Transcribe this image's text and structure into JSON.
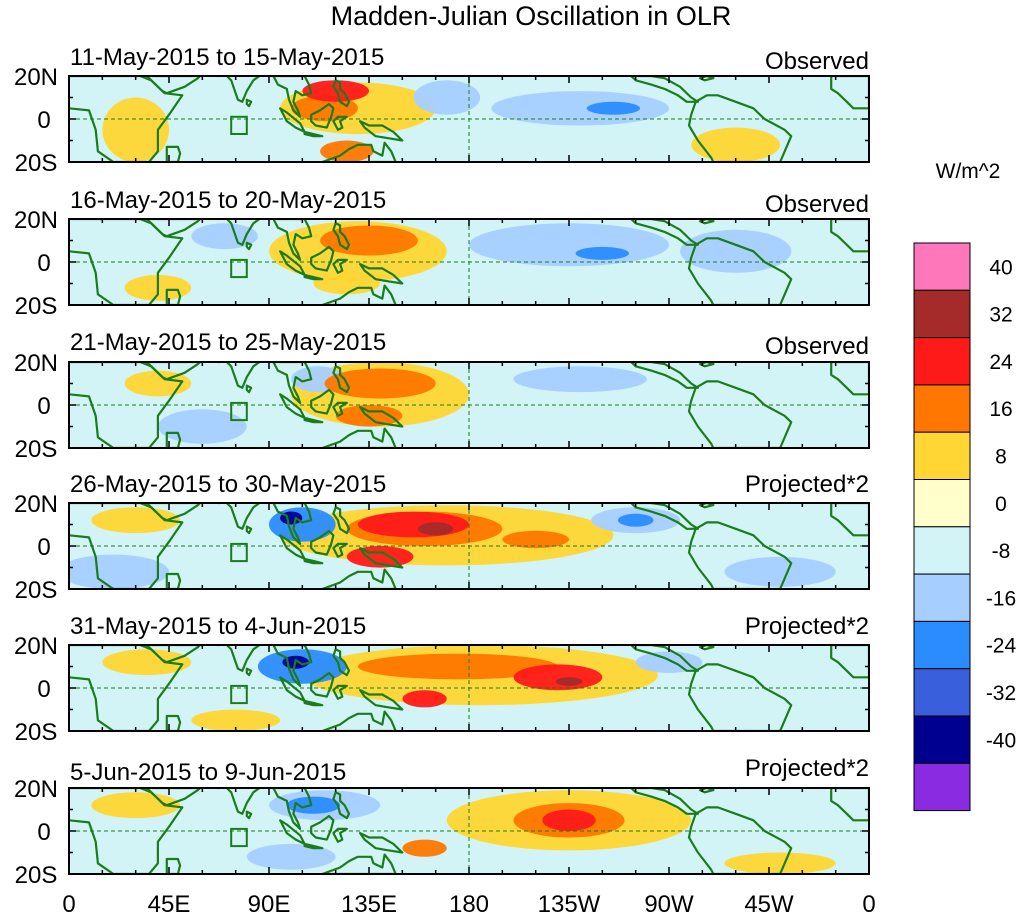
{
  "title": "Madden-Julian Oscillation in OLR",
  "units": "W/m^2",
  "lat_labels": [
    "20N",
    "0",
    "20S"
  ],
  "lon_labels": [
    "0",
    "45E",
    "90E",
    "135E",
    "180",
    "135W",
    "90W",
    "45W",
    "0"
  ],
  "colorbar": {
    "levels": [
      "40",
      "32",
      "24",
      "16",
      "8",
      "0",
      "-8",
      "-16",
      "-24",
      "-32",
      "-40"
    ],
    "colors": [
      "#ff77bb",
      "#a52a2a",
      "#ff1a1a",
      "#ff7700",
      "#ffd633",
      "#ffffcc",
      "#d2f4f7",
      "#a6cfff",
      "#2a8cff",
      "#3a5fdd",
      "#000090",
      "#8a2be2"
    ]
  },
  "colors": {
    "coast": "#1a7d1a",
    "box": "#1a7d1a",
    "dashed_ref": "#1a7d1a"
  },
  "panels": [
    {
      "date_range": "11-May-2015 to 15-May-2015",
      "kind": "Observed",
      "anomalies": [
        {
          "lon": 130,
          "lat": 5,
          "rlon": 35,
          "rlat": 12,
          "level": 8
        },
        {
          "lon": 120,
          "lat": 13,
          "rlon": 15,
          "rlat": 5,
          "level": 24
        },
        {
          "lon": 125,
          "lat": -15,
          "rlon": 12,
          "rlat": 5,
          "level": 16
        },
        {
          "lon": 115,
          "lat": 5,
          "rlon": 15,
          "rlat": 6,
          "level": 16
        },
        {
          "lon": 230,
          "lat": 5,
          "rlon": 40,
          "rlat": 8,
          "level": -8
        },
        {
          "lon": 245,
          "lat": 5,
          "rlon": 12,
          "rlat": 3,
          "level": -16
        },
        {
          "lon": 170,
          "lat": 10,
          "rlon": 15,
          "rlat": 8,
          "level": -8
        },
        {
          "lon": 30,
          "lat": -5,
          "rlon": 15,
          "rlat": 15,
          "level": 8
        },
        {
          "lon": 300,
          "lat": -12,
          "rlon": 20,
          "rlat": 8,
          "level": 8
        }
      ]
    },
    {
      "date_range": "16-May-2015 to 20-May-2015",
      "kind": "Observed",
      "anomalies": [
        {
          "lon": 130,
          "lat": 5,
          "rlon": 40,
          "rlat": 14,
          "level": 8
        },
        {
          "lon": 135,
          "lat": 10,
          "rlon": 22,
          "rlat": 7,
          "level": 16
        },
        {
          "lon": 125,
          "lat": -10,
          "rlon": 15,
          "rlat": 5,
          "level": 8
        },
        {
          "lon": 225,
          "lat": 8,
          "rlon": 45,
          "rlat": 10,
          "level": -8
        },
        {
          "lon": 240,
          "lat": 4,
          "rlon": 12,
          "rlat": 3,
          "level": -16
        },
        {
          "lon": 70,
          "lat": 12,
          "rlon": 15,
          "rlat": 6,
          "level": -8
        },
        {
          "lon": 40,
          "lat": -12,
          "rlon": 15,
          "rlat": 6,
          "level": 8
        },
        {
          "lon": 300,
          "lat": 5,
          "rlon": 25,
          "rlat": 10,
          "level": -8
        }
      ]
    },
    {
      "date_range": "21-May-2015 to 25-May-2015",
      "kind": "Observed",
      "anomalies": [
        {
          "lon": 140,
          "lat": 5,
          "rlon": 40,
          "rlat": 15,
          "level": 8
        },
        {
          "lon": 140,
          "lat": 10,
          "rlon": 25,
          "rlat": 7,
          "level": 16
        },
        {
          "lon": 135,
          "lat": -5,
          "rlon": 15,
          "rlat": 5,
          "level": 16
        },
        {
          "lon": 112,
          "lat": 12,
          "rlon": 12,
          "rlat": 6,
          "level": -8
        },
        {
          "lon": 230,
          "lat": 12,
          "rlon": 30,
          "rlat": 6,
          "level": -8
        },
        {
          "lon": 60,
          "lat": -10,
          "rlon": 20,
          "rlat": 8,
          "level": -8
        },
        {
          "lon": 40,
          "lat": 10,
          "rlon": 15,
          "rlat": 6,
          "level": 8
        }
      ]
    },
    {
      "date_range": "26-May-2015 to 30-May-2015",
      "kind": "Projected*2",
      "anomalies": [
        {
          "lon": 170,
          "lat": 5,
          "rlon": 75,
          "rlat": 14,
          "level": 8
        },
        {
          "lon": 160,
          "lat": 8,
          "rlon": 35,
          "rlat": 8,
          "level": 16
        },
        {
          "lon": 155,
          "lat": 10,
          "rlon": 25,
          "rlat": 6,
          "level": 24
        },
        {
          "lon": 165,
          "lat": 8,
          "rlon": 8,
          "rlat": 3,
          "level": 32
        },
        {
          "lon": 140,
          "lat": -5,
          "rlon": 15,
          "rlat": 5,
          "level": 24
        },
        {
          "lon": 210,
          "lat": 3,
          "rlon": 15,
          "rlat": 4,
          "level": 16
        },
        {
          "lon": 105,
          "lat": 10,
          "rlon": 15,
          "rlat": 8,
          "level": -16
        },
        {
          "lon": 100,
          "lat": 13,
          "rlon": 5,
          "rlat": 3,
          "level": -32
        },
        {
          "lon": 255,
          "lat": 12,
          "rlon": 20,
          "rlat": 6,
          "level": -8
        },
        {
          "lon": 255,
          "lat": 12,
          "rlon": 8,
          "rlat": 3,
          "level": -16
        },
        {
          "lon": 20,
          "lat": -12,
          "rlon": 25,
          "rlat": 8,
          "level": -8
        },
        {
          "lon": 320,
          "lat": -12,
          "rlon": 25,
          "rlat": 7,
          "level": -8
        },
        {
          "lon": 30,
          "lat": 12,
          "rlon": 20,
          "rlat": 6,
          "level": 8
        }
      ]
    },
    {
      "date_range": "31-May-2015 to 4-Jun-2015",
      "kind": "Projected*2",
      "anomalies": [
        {
          "lon": 185,
          "lat": 6,
          "rlon": 80,
          "rlat": 14,
          "level": 8
        },
        {
          "lon": 175,
          "lat": 10,
          "rlon": 45,
          "rlat": 6,
          "level": 16
        },
        {
          "lon": 220,
          "lat": 5,
          "rlon": 20,
          "rlat": 6,
          "level": 24
        },
        {
          "lon": 225,
          "lat": 3,
          "rlon": 6,
          "rlat": 2,
          "level": 32
        },
        {
          "lon": 160,
          "lat": -5,
          "rlon": 10,
          "rlat": 4,
          "level": 24
        },
        {
          "lon": 105,
          "lat": 10,
          "rlon": 20,
          "rlat": 8,
          "level": -16
        },
        {
          "lon": 102,
          "lat": 12,
          "rlon": 6,
          "rlat": 3,
          "level": -32
        },
        {
          "lon": 270,
          "lat": 12,
          "rlon": 15,
          "rlat": 5,
          "level": -8
        },
        {
          "lon": 35,
          "lat": 12,
          "rlon": 20,
          "rlat": 6,
          "level": 8
        },
        {
          "lon": 75,
          "lat": -15,
          "rlon": 20,
          "rlat": 5,
          "level": 8
        }
      ]
    },
    {
      "date_range": "5-Jun-2015 to 9-Jun-2015",
      "kind": "Projected*2",
      "anomalies": [
        {
          "lon": 225,
          "lat": 5,
          "rlon": 55,
          "rlat": 14,
          "level": 8
        },
        {
          "lon": 225,
          "lat": 5,
          "rlon": 25,
          "rlat": 8,
          "level": 16
        },
        {
          "lon": 225,
          "lat": 5,
          "rlon": 12,
          "rlat": 5,
          "level": 24
        },
        {
          "lon": 115,
          "lat": 12,
          "rlon": 25,
          "rlat": 7,
          "level": -8
        },
        {
          "lon": 110,
          "lat": 12,
          "rlon": 12,
          "rlat": 4,
          "level": -16
        },
        {
          "lon": 160,
          "lat": -8,
          "rlon": 10,
          "rlat": 4,
          "level": 16
        },
        {
          "lon": 100,
          "lat": -12,
          "rlon": 20,
          "rlat": 6,
          "level": -8
        },
        {
          "lon": 320,
          "lat": -15,
          "rlon": 25,
          "rlat": 5,
          "level": 8
        },
        {
          "lon": 30,
          "lat": 12,
          "rlon": 20,
          "rlat": 6,
          "level": 8
        }
      ]
    }
  ]
}
